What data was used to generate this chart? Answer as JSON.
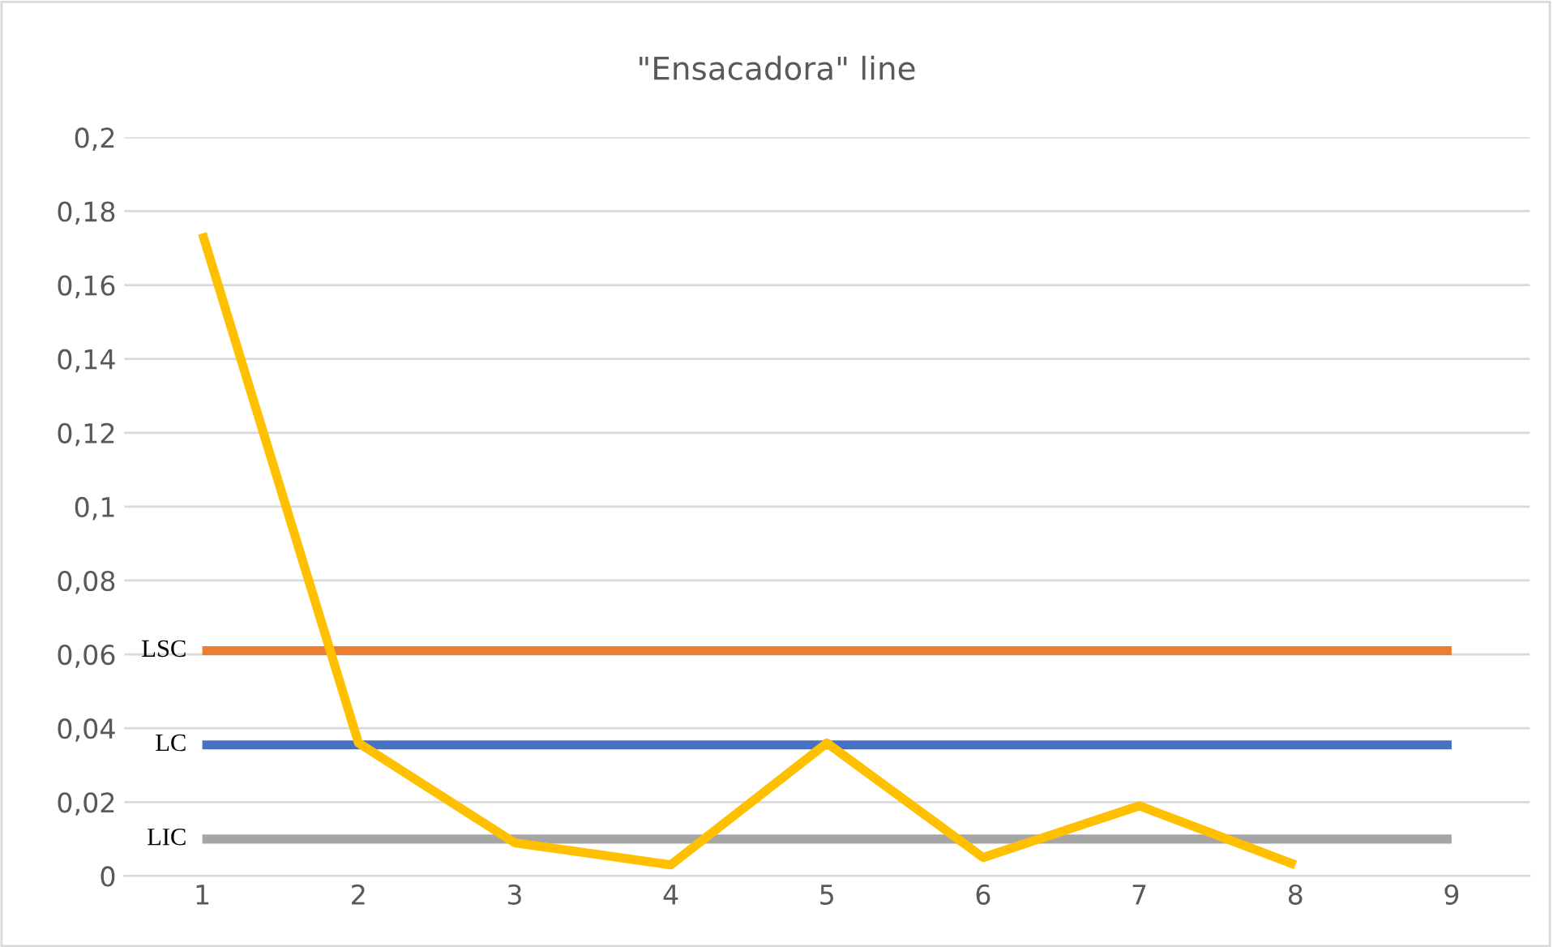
{
  "chart_data": {
    "type": "line",
    "title": "\"Ensacadora\" line",
    "categories": [
      "1",
      "2",
      "3",
      "4",
      "5",
      "6",
      "7",
      "8",
      "9"
    ],
    "series": [
      {
        "name": "LSC",
        "color": "#ed7d31",
        "values": [
          0.061,
          0.061,
          0.061,
          0.061,
          0.061,
          0.061,
          0.061,
          0.061,
          0.061
        ]
      },
      {
        "name": "LC",
        "color": "#4472c4",
        "values": [
          0.0355,
          0.0355,
          0.0355,
          0.0355,
          0.0355,
          0.0355,
          0.0355,
          0.0355,
          0.0355
        ]
      },
      {
        "name": "LIC",
        "color": "#a5a5a5",
        "values": [
          0.01,
          0.01,
          0.01,
          0.01,
          0.01,
          0.01,
          0.01,
          0.01,
          0.01
        ]
      },
      {
        "color": "#ffc000",
        "values": [
          0.174,
          0.036,
          0.009,
          0.003,
          0.036,
          0.005,
          0.019,
          0.003,
          null
        ]
      }
    ],
    "ylim": [
      0,
      0.2
    ],
    "yticks": [
      {
        "value": 0,
        "label": "0"
      },
      {
        "value": 0.02,
        "label": "0,02"
      },
      {
        "value": 0.04,
        "label": "0,04"
      },
      {
        "value": 0.06,
        "label": "0,06"
      },
      {
        "value": 0.08,
        "label": "0,08"
      },
      {
        "value": 0.1,
        "label": "0,1"
      },
      {
        "value": 0.12,
        "label": "0,12"
      },
      {
        "value": 0.14,
        "label": "0,14"
      },
      {
        "value": 0.16,
        "label": "0,16"
      },
      {
        "value": 0.18,
        "label": "0,18"
      },
      {
        "value": 0.2,
        "label": "0,2"
      }
    ],
    "grid": "y",
    "legend": false,
    "marker": "none",
    "line_style": "solid"
  }
}
